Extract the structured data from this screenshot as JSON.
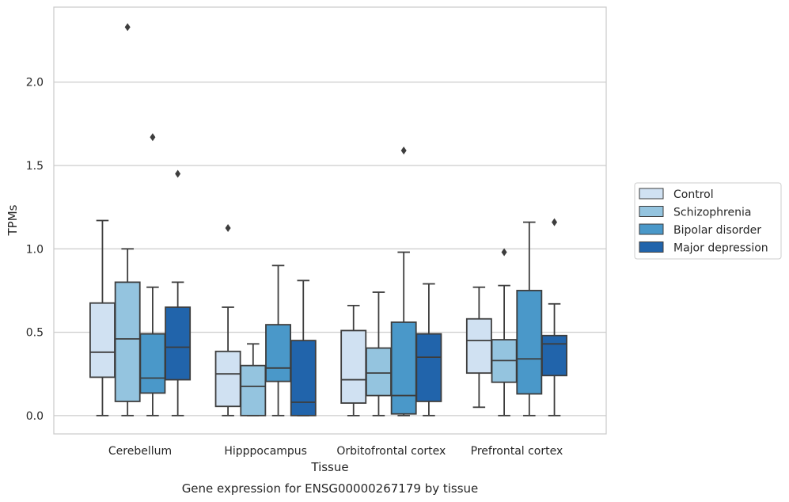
{
  "chart_data": {
    "type": "boxplot",
    "caption": "Gene expression for ENSG00000267179 by tissue",
    "xlabel": "Tissue",
    "ylabel": "TPMs",
    "ylim": [
      -0.11,
      2.45
    ],
    "yticks": [
      0.0,
      0.5,
      1.0,
      1.5,
      2.0
    ],
    "ytick_labels": [
      "0.0",
      "0.5",
      "1.0",
      "1.5",
      "2.0"
    ],
    "grid": "horizontal",
    "legend_position": "right",
    "categories": [
      "Cerebellum",
      "Hipppocampus",
      "Orbitofrontal cortex",
      "Prefrontal cortex"
    ],
    "series": [
      {
        "name": "Control",
        "color": "#d0e1f2",
        "boxes": [
          {
            "whislo": 0.0,
            "q1": 0.23,
            "med": 0.38,
            "q3": 0.675,
            "whishi": 1.17,
            "fliers": []
          },
          {
            "whislo": 0.0,
            "q1": 0.055,
            "med": 0.25,
            "q3": 0.385,
            "whishi": 0.65,
            "fliers": [
              1.125
            ]
          },
          {
            "whislo": 0.0,
            "q1": 0.075,
            "med": 0.215,
            "q3": 0.51,
            "whishi": 0.66,
            "fliers": []
          },
          {
            "whislo": 0.05,
            "q1": 0.255,
            "med": 0.45,
            "q3": 0.58,
            "whishi": 0.77,
            "fliers": []
          }
        ]
      },
      {
        "name": "Schizophrenia",
        "color": "#94c4df",
        "boxes": [
          {
            "whislo": 0.0,
            "q1": 0.085,
            "med": 0.46,
            "q3": 0.8,
            "whishi": 1.0,
            "fliers": [
              2.33
            ]
          },
          {
            "whislo": 0.0,
            "q1": 0.0,
            "med": 0.175,
            "q3": 0.3,
            "whishi": 0.43,
            "fliers": []
          },
          {
            "whislo": 0.0,
            "q1": 0.12,
            "med": 0.255,
            "q3": 0.405,
            "whishi": 0.74,
            "fliers": []
          },
          {
            "whislo": 0.0,
            "q1": 0.2,
            "med": 0.33,
            "q3": 0.455,
            "whishi": 0.78,
            "fliers": [
              0.98
            ]
          }
        ]
      },
      {
        "name": "Bipolar disorder",
        "color": "#4a98c9",
        "boxes": [
          {
            "whislo": 0.0,
            "q1": 0.135,
            "med": 0.225,
            "q3": 0.49,
            "whishi": 0.77,
            "fliers": [
              1.67
            ]
          },
          {
            "whislo": 0.0,
            "q1": 0.205,
            "med": 0.285,
            "q3": 0.545,
            "whishi": 0.9,
            "fliers": []
          },
          {
            "whislo": 0.0,
            "q1": 0.01,
            "med": 0.12,
            "q3": 0.56,
            "whishi": 0.98,
            "fliers": [
              1.59
            ]
          },
          {
            "whislo": 0.0,
            "q1": 0.13,
            "med": 0.34,
            "q3": 0.75,
            "whishi": 1.16,
            "fliers": []
          }
        ]
      },
      {
        "name": "Major depression",
        "color": "#2164ab",
        "boxes": [
          {
            "whislo": 0.0,
            "q1": 0.215,
            "med": 0.41,
            "q3": 0.65,
            "whishi": 0.8,
            "fliers": [
              1.45
            ]
          },
          {
            "whislo": 0.0,
            "q1": 0.0,
            "med": 0.08,
            "q3": 0.45,
            "whishi": 0.81,
            "fliers": []
          },
          {
            "whislo": 0.0,
            "q1": 0.085,
            "med": 0.35,
            "q3": 0.49,
            "whishi": 0.79,
            "fliers": []
          },
          {
            "whislo": 0.0,
            "q1": 0.24,
            "med": 0.43,
            "q3": 0.48,
            "whishi": 0.67,
            "fliers": [
              1.16
            ]
          }
        ]
      }
    ]
  }
}
